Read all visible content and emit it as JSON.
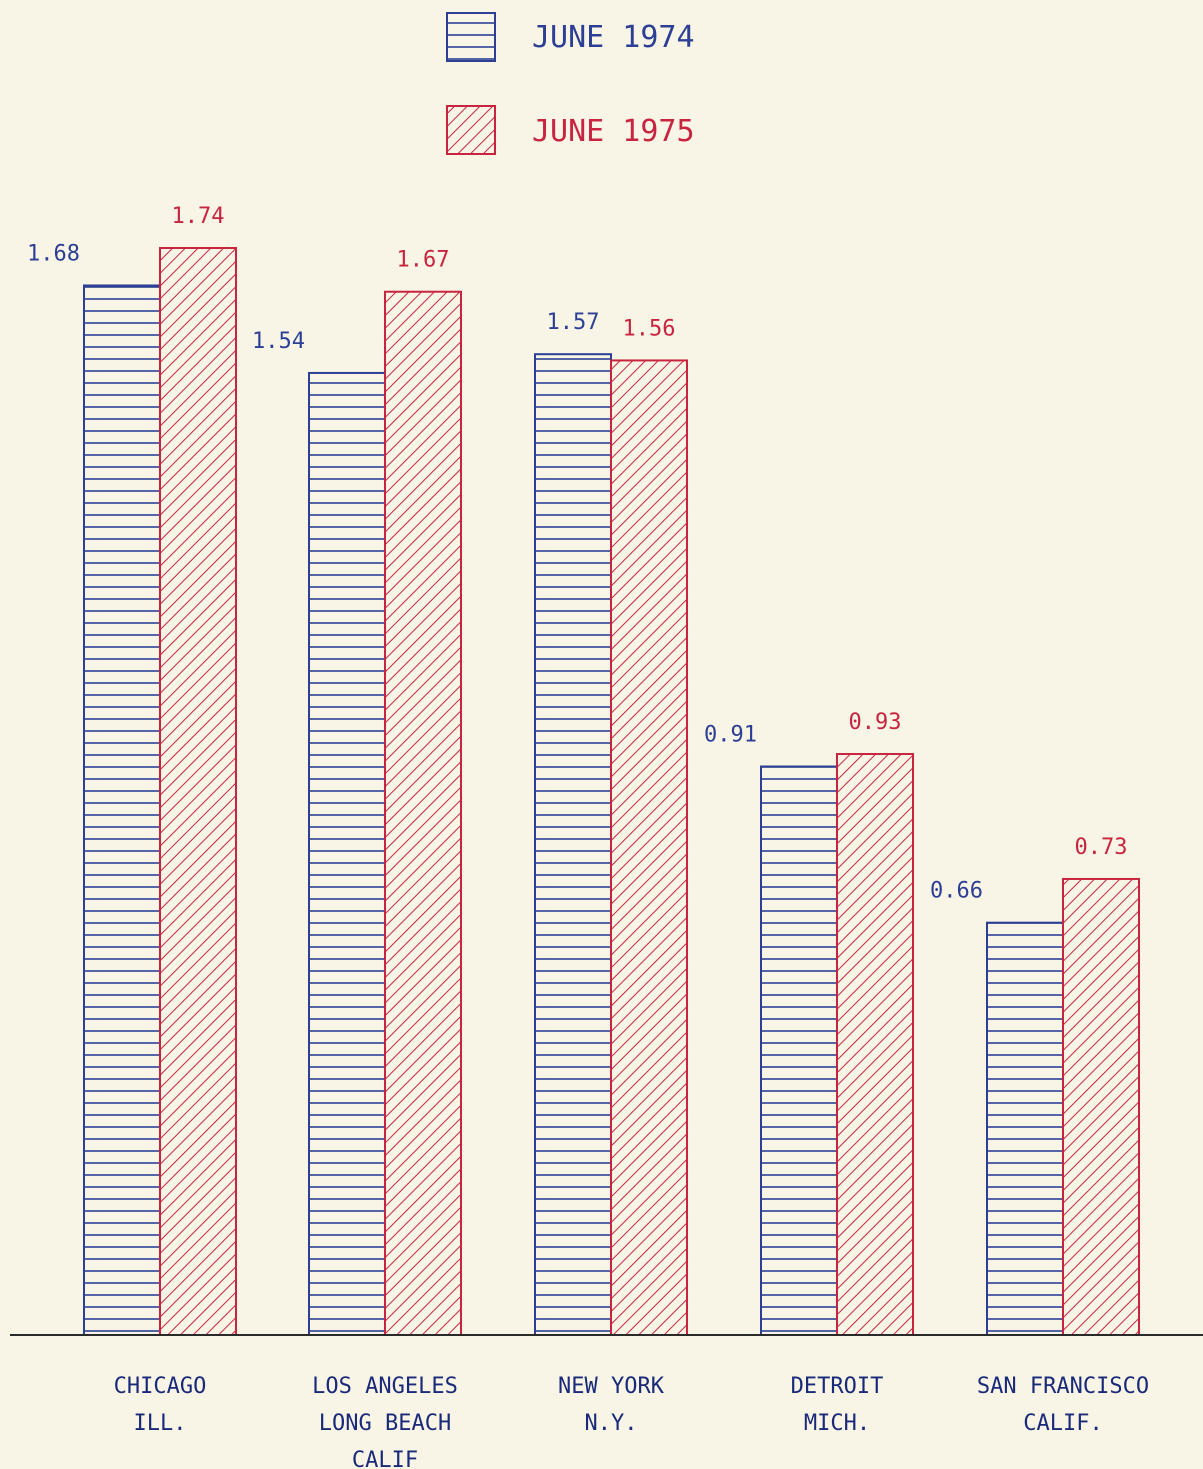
{
  "chart_data": {
    "type": "bar",
    "categories": [
      [
        "CHICAGO",
        "ILL."
      ],
      [
        "LOS ANGELES",
        "LONG BEACH",
        "CALIF"
      ],
      [
        "NEW YORK",
        "N.Y."
      ],
      [
        "DETROIT",
        "MICH."
      ],
      [
        "SAN FRANCISCO",
        "CALIF."
      ]
    ],
    "series": [
      {
        "name": "JUNE 1974",
        "color": "#2c3f95",
        "pattern": "horizontal-hatch",
        "values": [
          1.68,
          1.54,
          1.57,
          0.91,
          0.66
        ],
        "labels": [
          "1.68",
          "1.54",
          "1.57",
          "0.91",
          "0.66"
        ]
      },
      {
        "name": "JUNE 1975",
        "color": "#c8243f",
        "pattern": "diagonal-hatch",
        "values": [
          1.74,
          1.67,
          1.56,
          0.93,
          0.73
        ],
        "labels": [
          "1.74",
          "1.67",
          "1.56",
          "0.93",
          "0.73"
        ]
      }
    ],
    "title": "",
    "xlabel": "",
    "ylabel": "",
    "ylim": [
      0,
      1.74
    ],
    "grid": false,
    "legend": "top-center"
  }
}
